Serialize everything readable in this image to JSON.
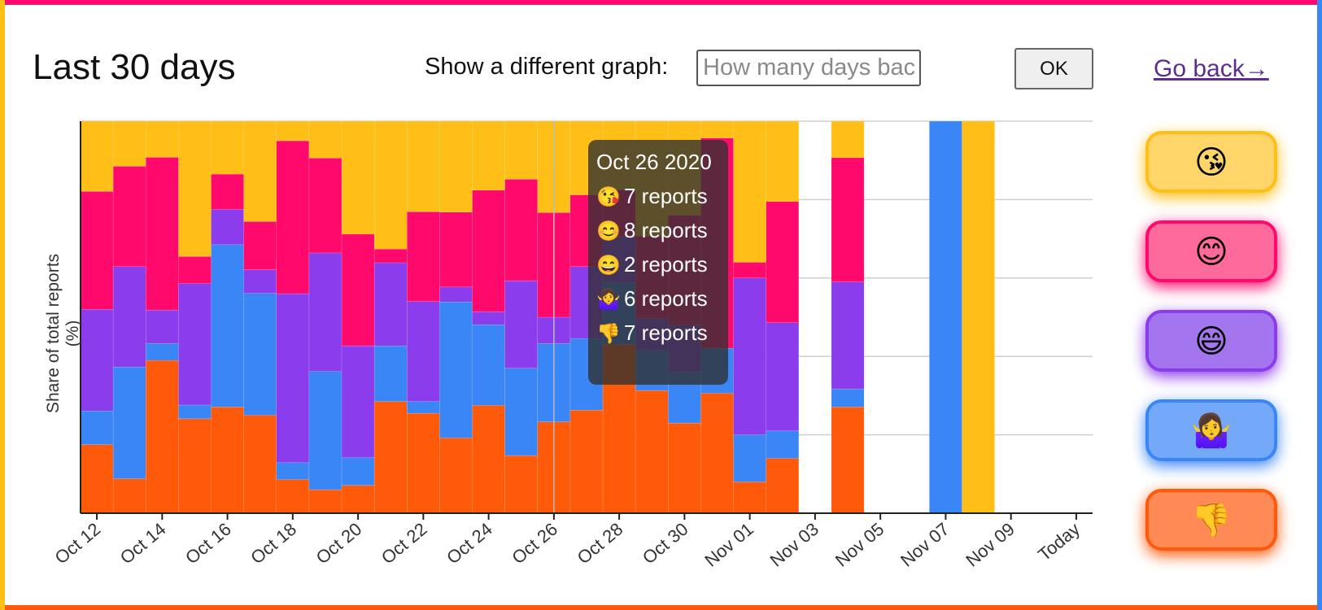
{
  "header": {
    "title": "Last 30 days",
    "prompt_label": "Show a different graph:",
    "days_placeholder": "How many days back?",
    "ok_label": "OK",
    "go_back_label": "Go back→"
  },
  "colors": {
    "kiss": "#ffbf16",
    "smile": "#ff0a6c",
    "grin": "#8b3cec",
    "shrug": "#3b86f7",
    "thumbs_down": "#ff5a0a"
  },
  "reaction_buttons": [
    {
      "name": "kiss",
      "emoji": "😘",
      "bg": "#ffd569",
      "border": "#ffbf16"
    },
    {
      "name": "smile",
      "emoji": "😊",
      "bg": "#ff6a9d",
      "border": "#ff0a6c"
    },
    {
      "name": "grin",
      "emoji": "😄",
      "bg": "#a375ee",
      "border": "#8b3cec"
    },
    {
      "name": "shrug",
      "emoji": "🤷‍♀️",
      "bg": "#74a8f8",
      "border": "#3b86f7"
    },
    {
      "name": "thumbs-down",
      "emoji": "👎",
      "bg": "#ff8a56",
      "border": "#ff5a0a"
    }
  ],
  "tooltip": {
    "date": "Oct 26 2020",
    "rows": [
      {
        "emoji": "😘",
        "text": "7 reports"
      },
      {
        "emoji": "😊",
        "text": "8 reports"
      },
      {
        "emoji": "😄",
        "text": "2 reports"
      },
      {
        "emoji": "🤷‍♀️",
        "text": "6 reports"
      },
      {
        "emoji": "👎",
        "text": "7 reports"
      }
    ]
  },
  "chart_data": {
    "type": "bar",
    "stacked": true,
    "normalized": true,
    "ylabel": "Share of total reports (%)",
    "ylim": [
      0,
      100
    ],
    "grid": true,
    "x_tick_labels": [
      "Oct 12",
      "Oct 14",
      "Oct 16",
      "Oct 18",
      "Oct 20",
      "Oct 22",
      "Oct 24",
      "Oct 26",
      "Oct 28",
      "Oct 30",
      "Nov 01",
      "Nov 03",
      "Nov 05",
      "Nov 07",
      "Nov 09",
      "Today"
    ],
    "categories": [
      "Oct 12",
      "Oct 13",
      "Oct 14",
      "Oct 15",
      "Oct 16",
      "Oct 17",
      "Oct 18",
      "Oct 19",
      "Oct 20",
      "Oct 21",
      "Oct 22",
      "Oct 23",
      "Oct 24",
      "Oct 25",
      "Oct 26",
      "Oct 27",
      "Oct 28",
      "Oct 29",
      "Oct 30",
      "Oct 31",
      "Nov 01",
      "Nov 02",
      "Nov 03",
      "Nov 04",
      "Nov 05",
      "Nov 06",
      "Nov 07",
      "Nov 08",
      "Nov 09",
      "Nov 10",
      "Today"
    ],
    "series": [
      {
        "key": "thumbs_down",
        "values": [
          17.5,
          8.8,
          39.0,
          24.1,
          27.1,
          25.0,
          8.6,
          6.0,
          7.1,
          28.5,
          25.5,
          19.2,
          27.5,
          14.7,
          23.3,
          26.3,
          43.1,
          31.3,
          23.0,
          30.6,
          8.0,
          14.0,
          0,
          27.1,
          0,
          0,
          0,
          0,
          0,
          0,
          0
        ]
      },
      {
        "key": "shrug",
        "values": [
          8.6,
          28.5,
          4.3,
          3.5,
          41.4,
          31.1,
          4.3,
          30.2,
          7.1,
          14.2,
          3.0,
          34.7,
          20.6,
          22.3,
          20.0,
          18.3,
          15.7,
          10.3,
          13.0,
          11.5,
          12.0,
          7.0,
          0,
          4.6,
          0,
          0,
          100,
          0,
          0,
          0,
          0
        ]
      },
      {
        "key": "grin",
        "values": [
          25.9,
          25.6,
          8.5,
          31.0,
          9.0,
          6.0,
          43.1,
          30.2,
          28.5,
          21.2,
          25.5,
          3.8,
          3.3,
          22.3,
          6.7,
          18.3,
          11.6,
          8.1,
          12.0,
          0,
          40.0,
          27.6,
          0,
          27.3,
          0,
          0,
          0,
          0,
          0,
          0,
          0
        ]
      },
      {
        "key": "smile",
        "values": [
          30.1,
          25.6,
          39.0,
          6.9,
          9.0,
          12.3,
          39.0,
          24.2,
          28.5,
          3.5,
          22.9,
          19.1,
          31.0,
          25.9,
          26.7,
          18.3,
          12.1,
          21.0,
          28.0,
          53.6,
          4.0,
          30.9,
          0,
          31.7,
          0,
          0,
          0,
          0,
          0,
          0,
          0
        ]
      },
      {
        "key": "kiss",
        "values": [
          17.9,
          11.5,
          9.2,
          34.5,
          13.5,
          25.6,
          5.0,
          9.4,
          28.8,
          32.6,
          23.1,
          23.2,
          17.6,
          14.8,
          23.3,
          18.8,
          17.5,
          29.3,
          24.0,
          4.3,
          36.0,
          20.5,
          0,
          9.3,
          0,
          0,
          0,
          100,
          0,
          0,
          0
        ]
      }
    ],
    "highlight_index": 14
  }
}
